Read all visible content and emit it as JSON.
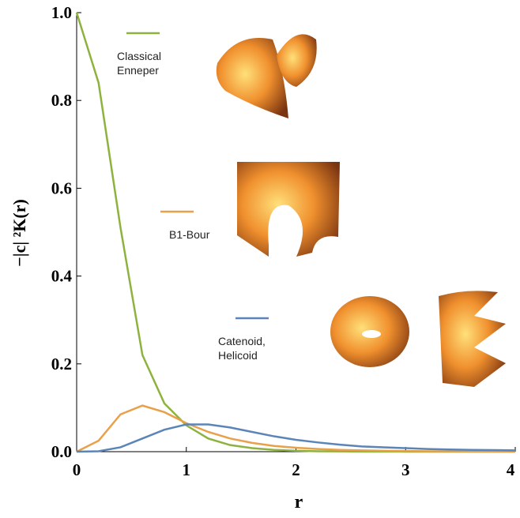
{
  "chart_data": {
    "type": "line",
    "x_label": "r",
    "y_label": "−|c| ²K(r)",
    "x": [
      0,
      0.2,
      0.4,
      0.6,
      0.8,
      1.0,
      1.2,
      1.4,
      1.6,
      1.8,
      2.0,
      2.2,
      2.4,
      2.6,
      2.8,
      3.0,
      3.2,
      3.4,
      3.6,
      3.8,
      4.0
    ],
    "series": [
      {
        "name": "Classical\nEnneper",
        "color": "#8db33e",
        "values": [
          1,
          0.84,
          0.51,
          0.22,
          0.11,
          0.06,
          0.03,
          0.015,
          0.008,
          0.004,
          0.002,
          0.001,
          0.0006,
          0.0003,
          0.0002,
          0.0001,
          0,
          0,
          0,
          0,
          0
        ]
      },
      {
        "name": "B1-Bour",
        "color": "#e9a04a",
        "values": [
          0,
          0.025,
          0.085,
          0.105,
          0.09,
          0.065,
          0.045,
          0.03,
          0.02,
          0.013,
          0.009,
          0.006,
          0.004,
          0.003,
          0.002,
          0.0015,
          0.001,
          0.0008,
          0.0006,
          0.0005,
          0.0004
        ]
      },
      {
        "name": "Catenoid,\nHelicoid",
        "color": "#5b84b8",
        "values": [
          0,
          0.001,
          0.01,
          0.03,
          0.05,
          0.062,
          0.062,
          0.055,
          0.045,
          0.035,
          0.027,
          0.021,
          0.016,
          0.012,
          0.01,
          0.008,
          0.006,
          0.005,
          0.004,
          0.0035,
          0.003
        ]
      }
    ],
    "xlim": [
      0,
      4
    ],
    "xticks": [
      0,
      1,
      2,
      3,
      4
    ],
    "ylim": [
      0,
      1
    ],
    "yticks": [
      {
        "value": 0,
        "label": "0.0"
      },
      {
        "value": 0.2,
        "label": "0.2"
      },
      {
        "value": 0.4,
        "label": "0.4"
      },
      {
        "value": 0.6,
        "label": "0.6"
      },
      {
        "value": 0.8,
        "label": "0.8"
      },
      {
        "value": 1,
        "label": "1.0"
      }
    ],
    "grid": false
  }
}
